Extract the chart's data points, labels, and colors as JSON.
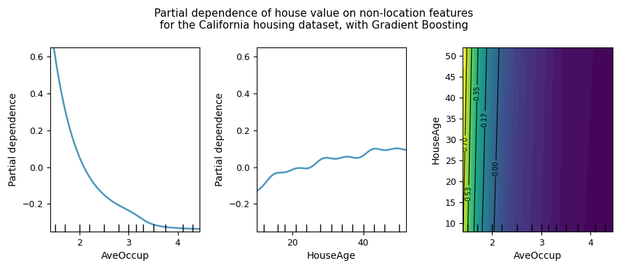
{
  "title": "Partial dependence of house value on non-location features\nfor the California housing dataset, with Gradient Boosting",
  "title_fontsize": 11,
  "plot1_xlabel": "AveOccup",
  "plot1_ylabel": "Partial dependence",
  "plot1_xlim": [
    1.4,
    4.45
  ],
  "plot1_ylim": [
    -0.35,
    0.65
  ],
  "plot1_yticks": [
    -0.2,
    0.0,
    0.2,
    0.4,
    0.6
  ],
  "plot1_xticks": [
    2,
    3,
    4
  ],
  "plot1_rug_x": [
    1.5,
    1.7,
    2.0,
    2.2,
    2.5,
    2.8,
    3.0,
    3.15,
    3.3,
    3.5,
    3.75,
    4.1,
    4.3
  ],
  "plot2_xlabel": "HouseAge",
  "plot2_ylabel": "Partial dependence",
  "plot2_xlim": [
    10,
    52
  ],
  "plot2_ylim": [
    -0.35,
    0.65
  ],
  "plot2_yticks": [
    -0.2,
    0.0,
    0.2,
    0.4,
    0.6
  ],
  "plot2_xticks": [
    20,
    40
  ],
  "plot2_rug_x": [
    12,
    16,
    18,
    21,
    24,
    28,
    31,
    34,
    37,
    40,
    43,
    46,
    50
  ],
  "plot3_xlabel": "AveOccup",
  "plot3_ylabel": "HouseAge",
  "plot3_xlim": [
    1.4,
    4.45
  ],
  "plot3_ylim": [
    8,
    52
  ],
  "plot3_xticks": [
    2,
    3,
    4
  ],
  "plot3_yticks": [
    10,
    15,
    20,
    25,
    30,
    35,
    40,
    45,
    50
  ],
  "plot3_rug_x": [
    1.5,
    1.7,
    2.0,
    2.2,
    2.5,
    2.8,
    3.0,
    3.15,
    3.3,
    3.5,
    3.75,
    4.1,
    4.3
  ],
  "contour_label_levels": [
    0.0,
    0.17,
    0.35,
    0.53,
    0.7
  ],
  "line_color": "#4c96be",
  "line_width": 1.8
}
